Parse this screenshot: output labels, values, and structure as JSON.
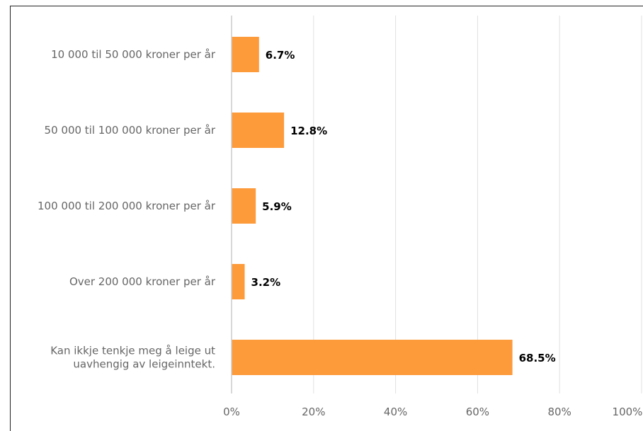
{
  "chart_data": {
    "type": "bar",
    "orientation": "horizontal",
    "categories": [
      [
        "10 000 til 50 000 kroner per år"
      ],
      [
        "50 000 til 100 000 kroner per år"
      ],
      [
        "100 000 til 200 000 kroner per år"
      ],
      [
        "Over 200 000 kroner per år"
      ],
      [
        "Kan ikkje tenkje meg å leige ut",
        "uavhengig av leigeinntekt."
      ]
    ],
    "values": [
      6.7,
      12.8,
      5.9,
      3.2,
      68.5
    ],
    "value_labels": [
      "6.7%",
      "12.8%",
      "5.9%",
      "3.2%",
      "68.5%"
    ],
    "xlim": [
      0,
      100
    ],
    "xticks": [
      0,
      20,
      40,
      60,
      80,
      100
    ],
    "xtick_labels": [
      "0%",
      "20%",
      "40%",
      "60%",
      "80%",
      "100%"
    ],
    "bar_color": "#fd9a3a",
    "grid": true,
    "grid_color": "#e0e0e0",
    "title": "",
    "xlabel": "",
    "ylabel": ""
  }
}
